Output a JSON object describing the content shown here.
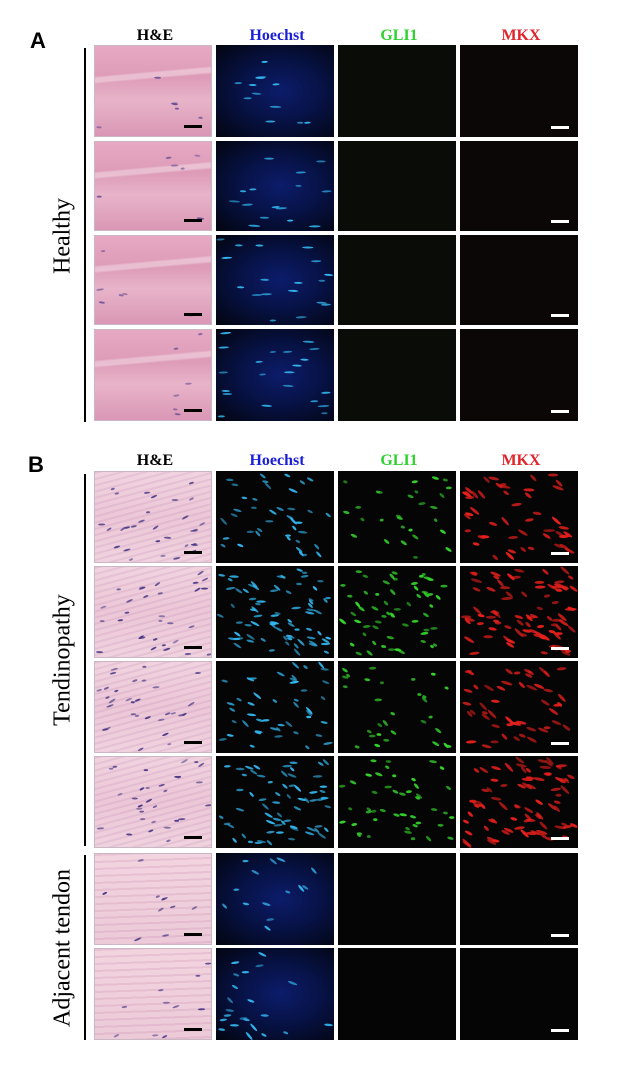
{
  "panel_a": {
    "letter": "A",
    "columns": [
      "H&E",
      "Hoechst",
      "GLI1",
      "MKX"
    ],
    "group_label": "Healthy"
  },
  "panel_b": {
    "letter": "B",
    "columns": [
      "H&E",
      "Hoechst",
      "GLI1",
      "MKX"
    ],
    "group_labels": [
      "Tendinopathy",
      "Adjacent tendon"
    ]
  },
  "colors": {
    "he_header": "#000000",
    "hoechst_header": "#1a1fd6",
    "gli1_header": "#2fd12f",
    "mkx_header": "#e0252b",
    "hoechst_nuclei": "#33b7f0",
    "gli1_signal": "#35d62c",
    "mkx_signal": "#e8201c"
  }
}
